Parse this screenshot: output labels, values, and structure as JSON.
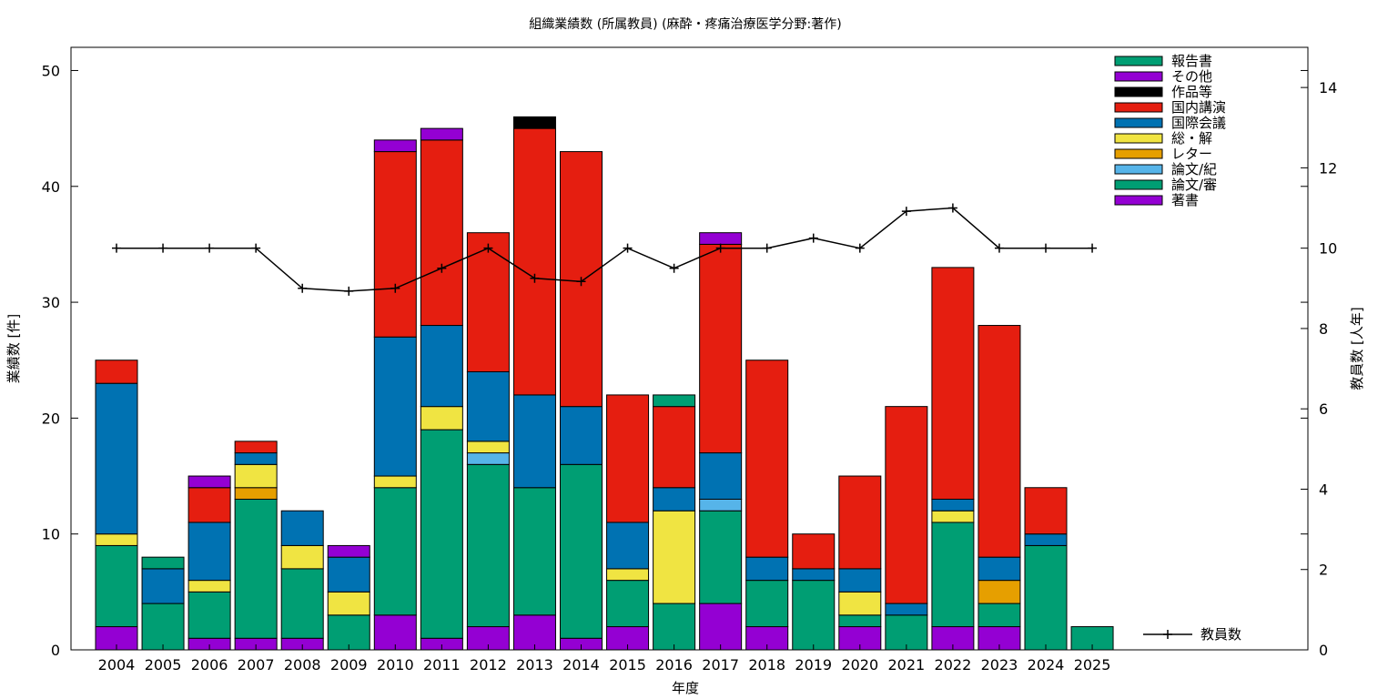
{
  "chart_data": {
    "type": "bar",
    "stacked": true,
    "title": "組織業績数 (所属教員) (麻酔・疼痛治療医学分野:著作)",
    "xlabel": "年度",
    "ylabel": "業績数 [件]",
    "y2label": "教員数 [人年]",
    "ylim": [
      0,
      52
    ],
    "y2lim": [
      0,
      15
    ],
    "yticks": [
      0,
      10,
      20,
      30,
      40,
      50
    ],
    "y2ticks": [
      0,
      2,
      4,
      6,
      8,
      10,
      12,
      14
    ],
    "grid": false,
    "legend_position": "top-right",
    "categories": [
      "2004",
      "2005",
      "2006",
      "2007",
      "2008",
      "2009",
      "2010",
      "2011",
      "2012",
      "2013",
      "2014",
      "2015",
      "2016",
      "2017",
      "2018",
      "2019",
      "2020",
      "2021",
      "2022",
      "2023",
      "2024",
      "2025"
    ],
    "series": [
      {
        "name": "著書",
        "color": "#9400d3",
        "values": [
          2,
          0,
          1,
          1,
          1,
          0,
          3,
          1,
          2,
          3,
          1,
          2,
          0,
          4,
          2,
          0,
          2,
          0,
          2,
          2,
          0,
          0
        ]
      },
      {
        "name": "論文/審",
        "color": "#009e73",
        "values": [
          7,
          4,
          4,
          12,
          6,
          3,
          11,
          18,
          14,
          11,
          15,
          4,
          4,
          8,
          4,
          6,
          1,
          3,
          9,
          2,
          9,
          2
        ]
      },
      {
        "name": "論文/紀",
        "color": "#56b4e9",
        "values": [
          0,
          0,
          0,
          0,
          0,
          0,
          0,
          0,
          1,
          0,
          0,
          0,
          0,
          1,
          0,
          0,
          0,
          0,
          0,
          0,
          0,
          0
        ]
      },
      {
        "name": "レター",
        "color": "#e69f00",
        "values": [
          0,
          0,
          0,
          1,
          0,
          0,
          0,
          0,
          0,
          0,
          0,
          0,
          0,
          0,
          0,
          0,
          0,
          0,
          0,
          2,
          0,
          0
        ]
      },
      {
        "name": "総・解",
        "color": "#f0e442",
        "values": [
          1,
          0,
          1,
          2,
          2,
          2,
          1,
          2,
          1,
          0,
          0,
          1,
          8,
          0,
          0,
          0,
          2,
          0,
          1,
          0,
          0,
          0
        ]
      },
      {
        "name": "国際会議",
        "color": "#0072b2",
        "values": [
          13,
          3,
          5,
          1,
          3,
          3,
          12,
          7,
          6,
          8,
          5,
          4,
          2,
          4,
          2,
          1,
          2,
          1,
          1,
          2,
          1,
          0
        ]
      },
      {
        "name": "国内講演",
        "color": "#e51e10",
        "values": [
          2,
          0,
          3,
          1,
          0,
          0,
          16,
          16,
          12,
          23,
          22,
          11,
          7,
          18,
          17,
          3,
          8,
          17,
          20,
          20,
          4,
          0
        ]
      },
      {
        "name": "作品等",
        "color": "#000000",
        "values": [
          0,
          0,
          0,
          0,
          0,
          0,
          0,
          0,
          0,
          1,
          0,
          0,
          0,
          0,
          0,
          0,
          0,
          0,
          0,
          0,
          0,
          0
        ]
      },
      {
        "name": "その他",
        "color": "#9400d3",
        "values": [
          0,
          0,
          1,
          0,
          0,
          1,
          1,
          1,
          0,
          0,
          0,
          0,
          0,
          1,
          0,
          0,
          0,
          0,
          0,
          0,
          0,
          0
        ]
      },
      {
        "name": "報告書",
        "color": "#009e73",
        "values": [
          0,
          1,
          0,
          0,
          0,
          0,
          0,
          0,
          0,
          0,
          0,
          0,
          1,
          0,
          0,
          0,
          0,
          0,
          0,
          0,
          0,
          0
        ]
      }
    ],
    "line_series": {
      "name": "教員数",
      "color": "#000000",
      "axis": "y2",
      "values": [
        10,
        10,
        10,
        10,
        9,
        8.93,
        9,
        9.5,
        10,
        9.25,
        9.17,
        10,
        9.5,
        10,
        10,
        10.25,
        10,
        10.92,
        11,
        10,
        10,
        10
      ]
    }
  }
}
